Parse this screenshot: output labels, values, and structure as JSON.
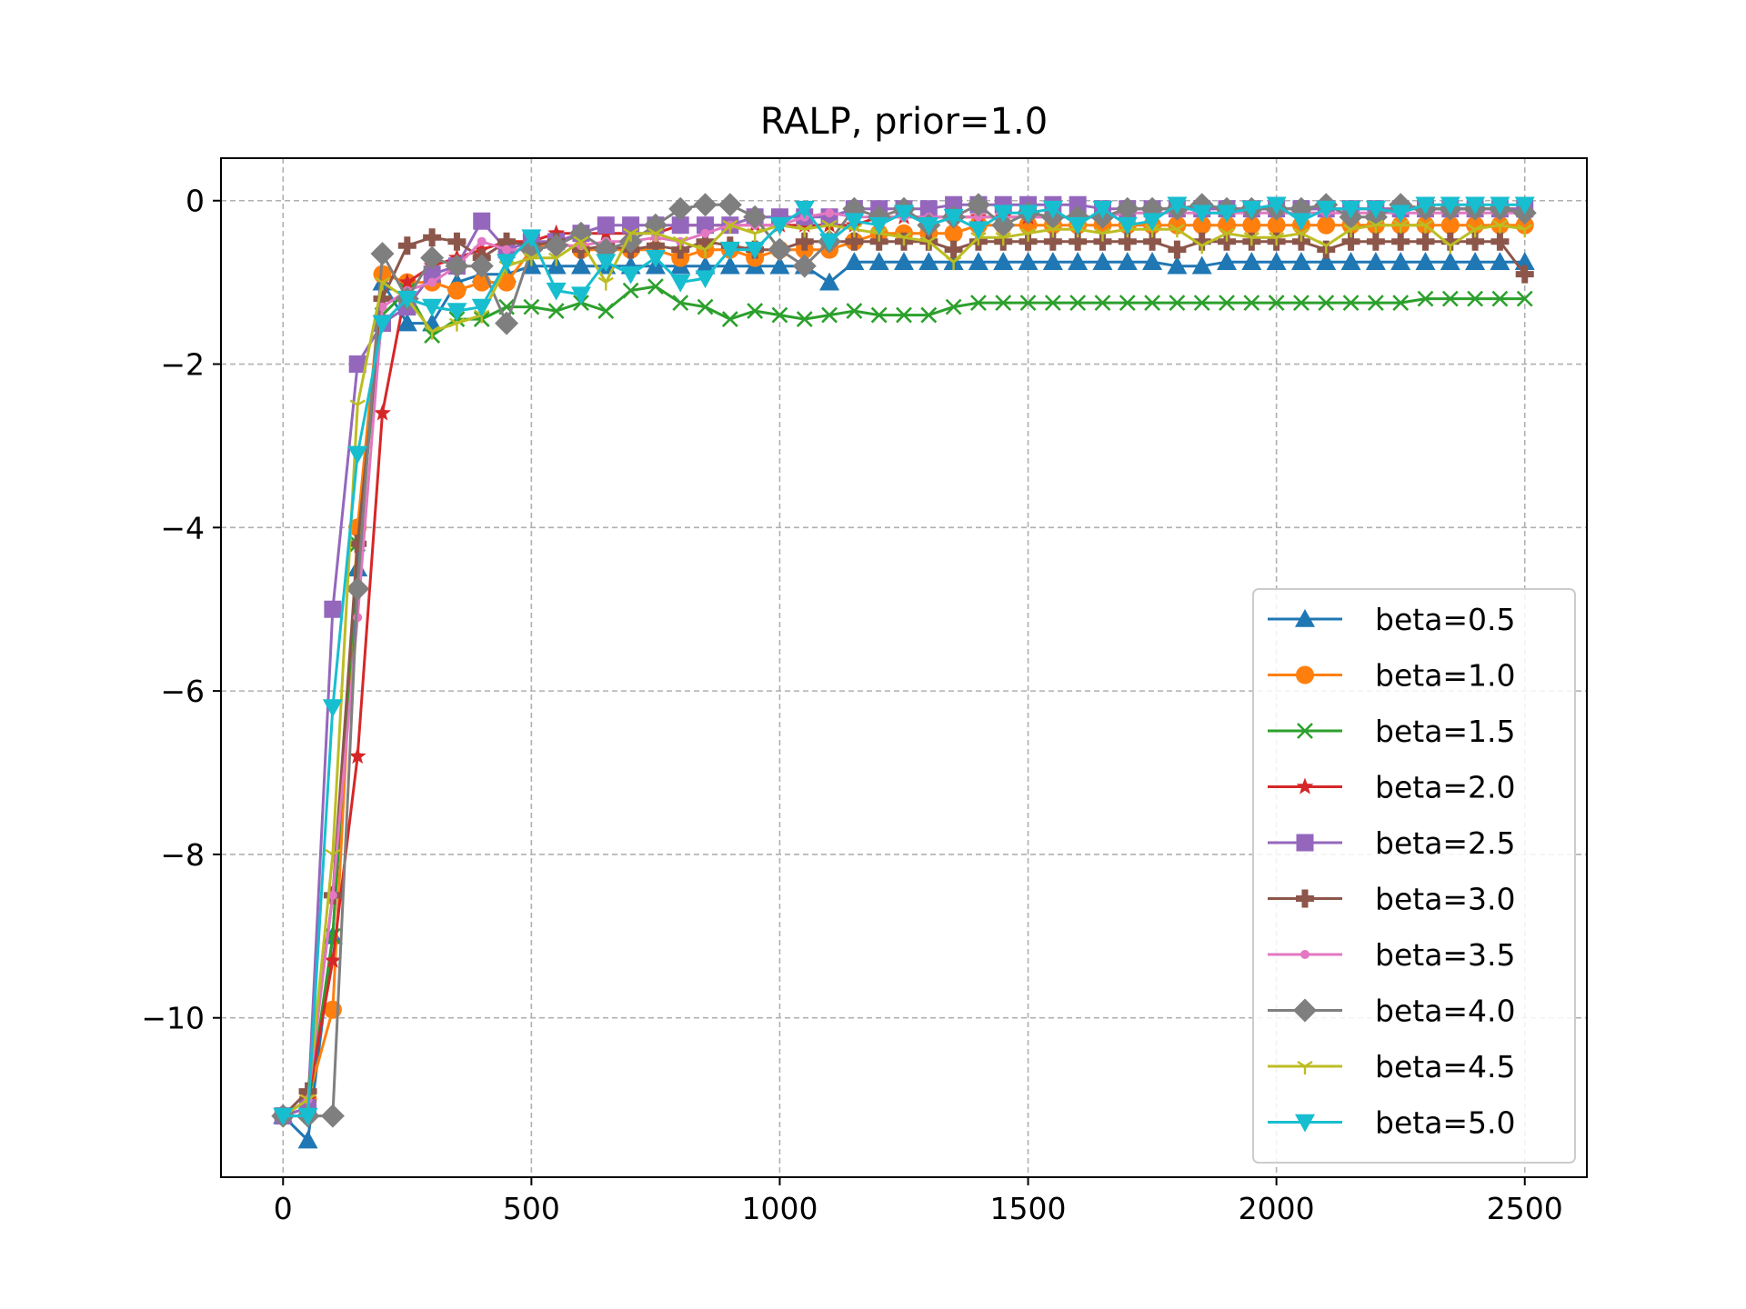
{
  "chart_data": {
    "type": "line",
    "title": "RALP, prior=1.0",
    "xlabel": "",
    "ylabel": "",
    "xlim": [
      -125,
      2625
    ],
    "ylim": [
      -11.95,
      0.52
    ],
    "xticks": [
      0,
      500,
      1000,
      1500,
      2000,
      2500
    ],
    "xtick_labels": [
      "0",
      "500",
      "1000",
      "1500",
      "2000",
      "2500"
    ],
    "yticks": [
      0,
      -2,
      -4,
      -6,
      -8,
      -10
    ],
    "ytick_labels": [
      "0",
      "−2",
      "−4",
      "−6",
      "−8",
      "−10"
    ],
    "grid": true,
    "legend_position": "lower-right",
    "x": [
      0,
      50,
      100,
      150,
      200,
      250,
      300,
      350,
      400,
      450,
      500,
      550,
      600,
      650,
      700,
      750,
      800,
      850,
      900,
      950,
      1000,
      1050,
      1100,
      1150,
      1200,
      1250,
      1300,
      1350,
      1400,
      1450,
      1500,
      1550,
      1600,
      1650,
      1700,
      1750,
      1800,
      1850,
      1900,
      1950,
      2000,
      2050,
      2100,
      2150,
      2200,
      2250,
      2300,
      2350,
      2400,
      2450,
      2500
    ],
    "series": [
      {
        "name": "beta=0.5",
        "color": "#1f77b4",
        "marker": "triangle-up",
        "values": [
          -11.2,
          -11.5,
          -9.0,
          -4.5,
          -1.0,
          -1.5,
          -1.5,
          -1.0,
          -0.9,
          -0.9,
          -0.8,
          -0.8,
          -0.8,
          -0.8,
          -0.8,
          -0.8,
          -0.8,
          -0.8,
          -0.8,
          -0.8,
          -0.8,
          -0.8,
          -1.0,
          -0.75,
          -0.75,
          -0.75,
          -0.75,
          -0.75,
          -0.75,
          -0.75,
          -0.75,
          -0.75,
          -0.75,
          -0.75,
          -0.75,
          -0.75,
          -0.8,
          -0.8,
          -0.75,
          -0.75,
          -0.75,
          -0.75,
          -0.75,
          -0.75,
          -0.75,
          -0.75,
          -0.75,
          -0.75,
          -0.75,
          -0.75,
          -0.75
        ]
      },
      {
        "name": "beta=1.0",
        "color": "#ff7f0e",
        "marker": "circle",
        "values": [
          -11.2,
          -11.0,
          -9.9,
          -4.0,
          -0.9,
          -1.0,
          -1.0,
          -1.1,
          -1.0,
          -1.0,
          -0.6,
          -0.5,
          -0.6,
          -0.6,
          -0.6,
          -0.6,
          -0.7,
          -0.6,
          -0.6,
          -0.7,
          -0.6,
          -0.6,
          -0.6,
          -0.5,
          -0.4,
          -0.4,
          -0.4,
          -0.4,
          -0.3,
          -0.3,
          -0.3,
          -0.3,
          -0.3,
          -0.3,
          -0.3,
          -0.3,
          -0.3,
          -0.3,
          -0.3,
          -0.3,
          -0.3,
          -0.3,
          -0.3,
          -0.3,
          -0.3,
          -0.3,
          -0.3,
          -0.3,
          -0.3,
          -0.3,
          -0.3
        ]
      },
      {
        "name": "beta=1.5",
        "color": "#2ca02c",
        "marker": "x",
        "values": [
          -11.2,
          -11.1,
          -9.0,
          -4.2,
          -1.4,
          -1.1,
          -1.65,
          -1.45,
          -1.45,
          -1.3,
          -1.3,
          -1.35,
          -1.25,
          -1.35,
          -1.1,
          -1.05,
          -1.25,
          -1.3,
          -1.45,
          -1.35,
          -1.4,
          -1.45,
          -1.4,
          -1.35,
          -1.4,
          -1.4,
          -1.4,
          -1.3,
          -1.25,
          -1.25,
          -1.25,
          -1.25,
          -1.25,
          -1.25,
          -1.25,
          -1.25,
          -1.25,
          -1.25,
          -1.25,
          -1.25,
          -1.25,
          -1.25,
          -1.25,
          -1.25,
          -1.25,
          -1.25,
          -1.2,
          -1.2,
          -1.2,
          -1.2,
          -1.2
        ]
      },
      {
        "name": "beta=2.0",
        "color": "#d62728",
        "marker": "star",
        "values": [
          -11.2,
          -11.0,
          -9.3,
          -6.8,
          -2.6,
          -1.0,
          -0.8,
          -0.7,
          -0.6,
          -0.5,
          -0.5,
          -0.4,
          -0.4,
          -0.4,
          -0.4,
          -0.4,
          -0.3,
          -0.3,
          -0.3,
          -0.3,
          -0.3,
          -0.3,
          -0.3,
          -0.3,
          -0.2,
          -0.2,
          -0.2,
          -0.2,
          -0.2,
          -0.2,
          -0.2,
          -0.2,
          -0.2,
          -0.2,
          -0.1,
          -0.1,
          -0.1,
          -0.1,
          -0.1,
          -0.1,
          -0.1,
          -0.1,
          -0.1,
          -0.1,
          -0.1,
          -0.1,
          -0.1,
          -0.1,
          -0.1,
          -0.1,
          -0.1
        ]
      },
      {
        "name": "beta=2.5",
        "color": "#9467bd",
        "marker": "square",
        "values": [
          -11.2,
          -11.1,
          -5.0,
          -2.0,
          -1.5,
          -1.3,
          -0.9,
          -0.8,
          -0.25,
          -0.6,
          -0.5,
          -0.5,
          -0.4,
          -0.3,
          -0.3,
          -0.3,
          -0.3,
          -0.3,
          -0.3,
          -0.2,
          -0.2,
          -0.2,
          -0.2,
          -0.1,
          -0.1,
          -0.1,
          -0.1,
          -0.05,
          -0.05,
          -0.05,
          -0.05,
          -0.05,
          -0.05,
          -0.1,
          -0.1,
          -0.1,
          -0.1,
          -0.1,
          -0.1,
          -0.1,
          -0.1,
          -0.1,
          -0.1,
          -0.1,
          -0.1,
          -0.1,
          -0.1,
          -0.1,
          -0.1,
          -0.1,
          -0.1
        ]
      },
      {
        "name": "beta=3.0",
        "color": "#8c564b",
        "marker": "plus-filled",
        "values": [
          -11.2,
          -10.9,
          -8.5,
          -4.2,
          -1.2,
          -0.55,
          -0.45,
          -0.5,
          -0.7,
          -0.5,
          -0.55,
          -0.5,
          -0.6,
          -0.55,
          -0.6,
          -0.55,
          -0.6,
          -0.5,
          -0.55,
          -0.6,
          -0.6,
          -0.5,
          -0.5,
          -0.5,
          -0.5,
          -0.5,
          -0.5,
          -0.6,
          -0.5,
          -0.5,
          -0.5,
          -0.5,
          -0.5,
          -0.5,
          -0.5,
          -0.5,
          -0.6,
          -0.5,
          -0.5,
          -0.5,
          -0.5,
          -0.5,
          -0.6,
          -0.5,
          -0.5,
          -0.5,
          -0.5,
          -0.5,
          -0.5,
          -0.5,
          -0.9
        ]
      },
      {
        "name": "beta=3.5",
        "color": "#e377c2",
        "marker": "point",
        "values": [
          -11.2,
          -11.0,
          -8.5,
          -5.1,
          -1.3,
          -1.1,
          -1.0,
          -0.8,
          -0.5,
          -0.6,
          -0.6,
          -0.55,
          -0.55,
          -0.5,
          -0.5,
          -0.45,
          -0.5,
          -0.4,
          -0.3,
          -0.3,
          -0.3,
          -0.2,
          -0.15,
          -0.2,
          -0.2,
          -0.2,
          -0.2,
          -0.2,
          -0.2,
          -0.2,
          -0.2,
          -0.2,
          -0.2,
          -0.2,
          -0.15,
          -0.15,
          -0.15,
          -0.15,
          -0.15,
          -0.15,
          -0.15,
          -0.15,
          -0.15,
          -0.15,
          -0.15,
          -0.15,
          -0.15,
          -0.15,
          -0.15,
          -0.15,
          -0.15
        ]
      },
      {
        "name": "beta=4.0",
        "color": "#7f7f7f",
        "marker": "diamond",
        "values": [
          -11.2,
          -11.2,
          -11.2,
          -4.75,
          -0.65,
          -1.2,
          -0.7,
          -0.8,
          -0.8,
          -1.5,
          -0.6,
          -0.55,
          -0.4,
          -0.6,
          -0.5,
          -0.3,
          -0.1,
          -0.05,
          -0.05,
          -0.2,
          -0.6,
          -0.8,
          -0.5,
          -0.1,
          -0.2,
          -0.1,
          -0.3,
          -0.2,
          -0.05,
          -0.3,
          -0.15,
          -0.2,
          -0.2,
          -0.2,
          -0.1,
          -0.1,
          -0.1,
          -0.05,
          -0.1,
          -0.1,
          -0.1,
          -0.1,
          -0.05,
          -0.2,
          -0.2,
          -0.05,
          -0.1,
          -0.1,
          -0.1,
          -0.1,
          -0.15
        ]
      },
      {
        "name": "beta=4.5",
        "color": "#bcbd22",
        "marker": "tri-down",
        "values": [
          -11.2,
          -11.0,
          -8.0,
          -2.5,
          -1.0,
          -1.2,
          -1.6,
          -1.5,
          -1.4,
          -0.8,
          -0.7,
          -0.7,
          -0.5,
          -1.0,
          -0.4,
          -0.4,
          -0.5,
          -0.6,
          -0.3,
          -0.4,
          -0.3,
          -0.35,
          -0.3,
          -0.35,
          -0.4,
          -0.45,
          -0.5,
          -0.75,
          -0.45,
          -0.45,
          -0.4,
          -0.35,
          -0.35,
          -0.4,
          -0.35,
          -0.35,
          -0.35,
          -0.55,
          -0.4,
          -0.45,
          -0.45,
          -0.4,
          -0.55,
          -0.35,
          -0.3,
          -0.3,
          -0.3,
          -0.55,
          -0.35,
          -0.3,
          -0.35
        ]
      },
      {
        "name": "beta=5.0",
        "color": "#17becf",
        "marker": "triangle-down",
        "values": [
          -11.2,
          -11.2,
          -6.2,
          -3.1,
          -1.5,
          -1.2,
          -1.3,
          -1.35,
          -1.3,
          -0.75,
          -0.45,
          -1.1,
          -1.15,
          -0.75,
          -0.9,
          -0.7,
          -1.0,
          -0.95,
          -0.6,
          -0.6,
          -0.3,
          -0.1,
          -0.5,
          -0.25,
          -0.3,
          -0.15,
          -0.3,
          -0.2,
          -0.35,
          -0.15,
          -0.15,
          -0.1,
          -0.3,
          -0.1,
          -0.3,
          -0.25,
          -0.05,
          -0.15,
          -0.15,
          -0.1,
          -0.05,
          -0.25,
          -0.1,
          -0.1,
          -0.1,
          -0.15,
          -0.05,
          -0.05,
          -0.05,
          -0.05,
          -0.05
        ]
      }
    ]
  }
}
